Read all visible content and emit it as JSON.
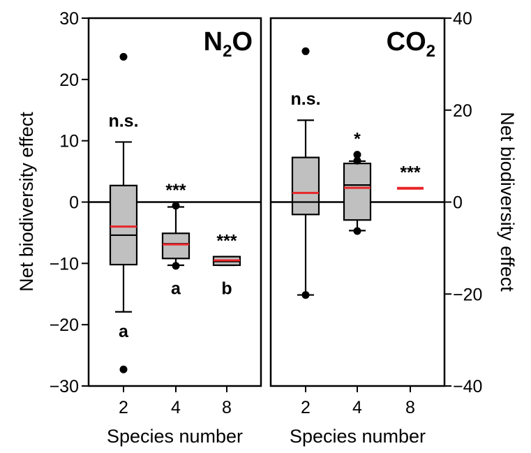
{
  "chart_data": [
    {
      "type": "box",
      "panel": "left",
      "title_main": "N",
      "title_sub": "2",
      "title_tail": "O",
      "ylabel": "Net biodiversity effect",
      "xlabel": "Species number",
      "ylim": [
        -30,
        30
      ],
      "yticks": [
        30,
        20,
        10,
        0,
        -10,
        -20,
        -30
      ],
      "ytick_labels": [
        "30",
        "20",
        "10",
        "0",
        "−10",
        "−20",
        "−30"
      ],
      "categories": [
        "2",
        "4",
        "8"
      ],
      "boxes": [
        {
          "category": "2",
          "q1": -10.2,
          "median": -5.4,
          "q3": 2.7,
          "mean": -4.0,
          "whisker_low": -17.9,
          "whisker_high": 9.8,
          "outliers": [
            23.7,
            -27.3
          ],
          "sig": "n.s.",
          "letter": "a",
          "letter_y": -21.0
        },
        {
          "category": "4",
          "q1": -9.2,
          "median": -6.8,
          "q3": -5.1,
          "mean": -6.9,
          "whisker_low": -10.3,
          "whisker_high": -0.8,
          "outliers": [
            -0.6,
            -10.4
          ],
          "sig": "***",
          "letter": "a",
          "letter_y": -14.0
        },
        {
          "category": "8",
          "q1": -10.3,
          "median": -9.7,
          "q3": -8.9,
          "mean": -9.5,
          "whisker_low": -10.3,
          "whisker_high": -8.9,
          "outliers": [],
          "sig": "***",
          "letter": "b",
          "letter_y": -14.0
        }
      ]
    },
    {
      "type": "box",
      "panel": "right",
      "title_main": "CO",
      "title_sub": "2",
      "title_tail": "",
      "ylabel": "Net biodiversity effect",
      "xlabel": "Species number",
      "ylim": [
        -40,
        40
      ],
      "yticks": [
        40,
        20,
        0,
        -20,
        -40
      ],
      "ytick_labels": [
        "40",
        "20",
        "0",
        "−20",
        "−40"
      ],
      "categories": [
        "2",
        "4",
        "8"
      ],
      "boxes": [
        {
          "category": "2",
          "q1": -2.7,
          "median": 0.0,
          "q3": 9.7,
          "mean": 2.0,
          "whisker_low": -20.2,
          "whisker_high": 17.8,
          "outliers": [
            32.8,
            -20.2
          ],
          "sig": "n.s.",
          "letter": "",
          "letter_y": 0
        },
        {
          "category": "4",
          "q1": -3.9,
          "median": 3.7,
          "q3": 8.4,
          "mean": 3.1,
          "whisker_low": -6.2,
          "whisker_high": 8.9,
          "outliers": [
            10.3,
            9.0,
            -6.3
          ],
          "sig": "*",
          "letter": "",
          "letter_y": 0
        },
        {
          "category": "8",
          "q1": 3.0,
          "median": 3.0,
          "q3": 3.0,
          "mean": 3.0,
          "whisker_low": 3.0,
          "whisker_high": 3.0,
          "outliers": [],
          "sig": "***",
          "letter": "",
          "letter_y": 0,
          "mean_only": true
        }
      ]
    }
  ],
  "colors": {
    "box_fill": "#c0c0c0",
    "mean_line": "#e8262a",
    "ink": "#000000"
  }
}
